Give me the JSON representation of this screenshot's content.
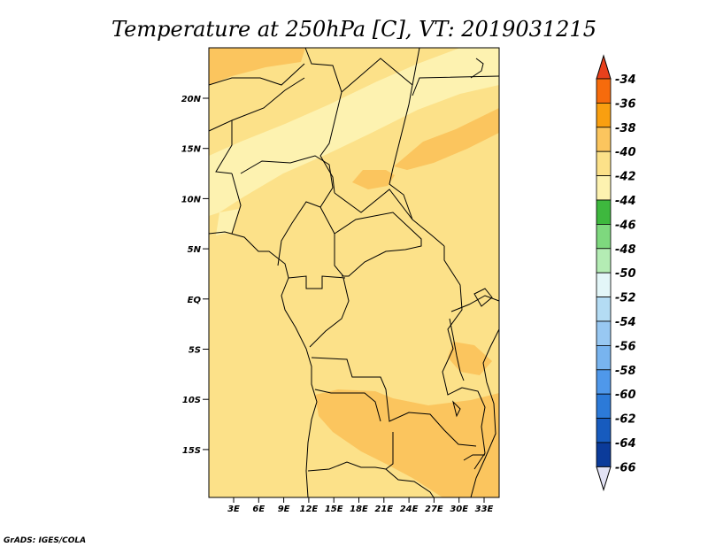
{
  "title": "Temperature at 250hPa [C], VT: 2019031215",
  "credit": "GrADS: IGES/COLA",
  "map": {
    "lat_ticks": [
      "20N",
      "15N",
      "10N",
      "5N",
      "EQ",
      "5S",
      "10S",
      "15S"
    ],
    "lon_ticks": [
      "3E",
      "6E",
      "9E",
      "12E",
      "15E",
      "18E",
      "21E",
      "24E",
      "27E",
      "30E",
      "33E"
    ],
    "colors": {
      "background": "#fce189",
      "band_warm": "#fbc55e",
      "band_cool": "#fdf2b0",
      "border": "#000000"
    }
  },
  "colorbar": {
    "labels": [
      "-34",
      "-36",
      "-38",
      "-40",
      "-42",
      "-44",
      "-46",
      "-48",
      "-50",
      "-52",
      "-54",
      "-56",
      "-58",
      "-60",
      "-62",
      "-64",
      "-66"
    ],
    "colors": [
      "#e8401c",
      "#f66b0c",
      "#f99f10",
      "#fbc55e",
      "#fce189",
      "#fdf2b0",
      "#3eb83e",
      "#7ed87e",
      "#b4ecb4",
      "#e3f6f8",
      "#b4dcf4",
      "#98c8f2",
      "#78b4ef",
      "#4f98ea",
      "#2c7ad8",
      "#175bbe",
      "#0b3b9a",
      "#0a1672",
      "#e2e2f4"
    ]
  }
}
